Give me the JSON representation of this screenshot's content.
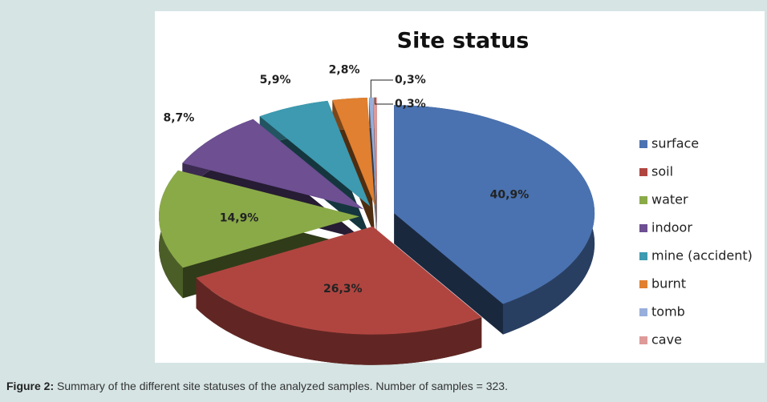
{
  "chart_data": {
    "type": "pie",
    "title": "Site status",
    "categories": [
      "surface",
      "soil",
      "water",
      "indoor",
      "mine (accident)",
      "burnt",
      "tomb",
      "cave"
    ],
    "values": [
      40.9,
      26.3,
      14.9,
      8.7,
      5.9,
      2.8,
      0.3,
      0.3
    ],
    "value_labels": [
      "40,9%",
      "26,3%",
      "14,9%",
      "8,7%",
      "5,9%",
      "2,8%",
      "0,3%",
      "0,3%"
    ],
    "colors": [
      "#4a72b0",
      "#b04540",
      "#8aaa48",
      "#6d4f92",
      "#3d9ab0",
      "#e08030",
      "#98aedb",
      "#dd9a98"
    ],
    "legend": "right"
  },
  "caption": {
    "label": "Figure 2:",
    "text": "Summary of the different site statuses of the analyzed samples. Number of samples = 323."
  }
}
